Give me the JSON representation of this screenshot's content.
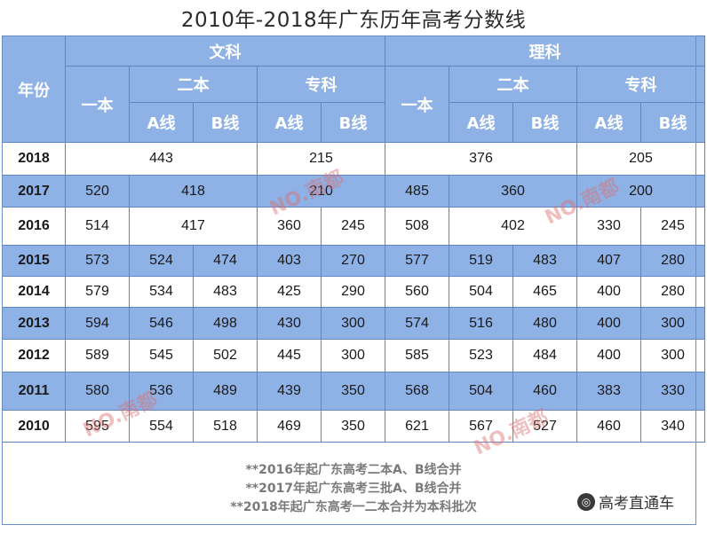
{
  "title": "2010年-2018年广东历年高考分数线",
  "headers": {
    "year": "年份",
    "arts": "文科",
    "science": "理科",
    "tier1": "一本",
    "tier2": "二本",
    "specialist": "专科",
    "lineA": "A线",
    "lineB": "B线"
  },
  "rows": [
    {
      "year": "2018",
      "wen": [
        "443",
        "215"
      ],
      "li": [
        "376",
        "205"
      ]
    },
    {
      "year": "2017",
      "wen": [
        "520",
        "418",
        "210"
      ],
      "li": [
        "485",
        "360",
        "200"
      ]
    },
    {
      "year": "2016",
      "wen": [
        "514",
        "417",
        "360",
        "245"
      ],
      "li": [
        "508",
        "402",
        "330",
        "245"
      ]
    },
    {
      "year": "2015",
      "wen": [
        "573",
        "524",
        "474",
        "403",
        "270"
      ],
      "li": [
        "577",
        "519",
        "483",
        "407",
        "280"
      ]
    },
    {
      "year": "2014",
      "wen": [
        "579",
        "534",
        "483",
        "425",
        "290"
      ],
      "li": [
        "560",
        "504",
        "465",
        "400",
        "280"
      ]
    },
    {
      "year": "2013",
      "wen": [
        "594",
        "546",
        "498",
        "430",
        "300"
      ],
      "li": [
        "574",
        "516",
        "480",
        "400",
        "300"
      ]
    },
    {
      "year": "2012",
      "wen": [
        "589",
        "545",
        "502",
        "445",
        "300"
      ],
      "li": [
        "585",
        "523",
        "484",
        "400",
        "300"
      ]
    },
    {
      "year": "2011",
      "wen": [
        "580",
        "536",
        "489",
        "439",
        "350"
      ],
      "li": [
        "568",
        "504",
        "460",
        "383",
        "330"
      ]
    },
    {
      "year": "2010",
      "wen": [
        "595",
        "554",
        "518",
        "469",
        "350"
      ],
      "li": [
        "621",
        "567",
        "527",
        "460",
        "340"
      ]
    }
  ],
  "notes": [
    "**2016年起广东高考二本A、B线合并",
    "**2017年起广东高考三批A、B线合并",
    "**2018年起广东高考一二本合并为本科批次"
  ],
  "brand": {
    "logo": "◎",
    "name": "高考直通车"
  },
  "watermark": "NO.南都",
  "colors": {
    "header_blue": "#8eb1e6",
    "border": "#5f84c4",
    "text": "#1a1a1a",
    "note": "#7a7a7a"
  }
}
